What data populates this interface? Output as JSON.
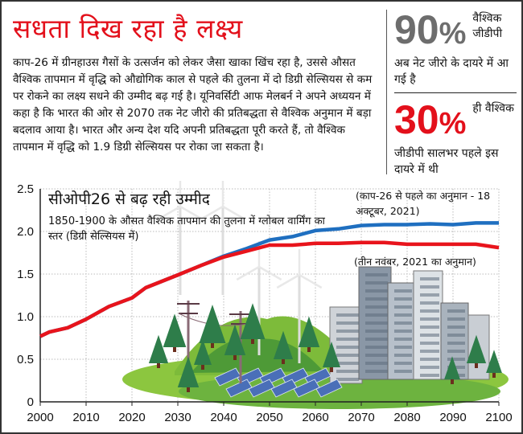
{
  "headline": "सधता दिख रहा है लक्ष्य",
  "body_text": "काप-26 में ग्रीनहाउस गैसों के उत्सर्जन को लेकर जैसा खाका खिंच रहा है, उससे औसत वैश्विक तापमान में वृद्धि को औद्योगिक काल से पहले की तुलना में दो डिग्री सेल्सियस से कम पर रोकने का लक्ष्य सधने की उम्मीद बढ़ गई है। यूनिवर्सिटी आफ मेलबर्न ने अपने अध्ययन में कहा है कि भारत की ओर से 2070 तक नेट जीरो की प्रतिबद्धता से वैश्विक अनुमान में बड़ा बदलाव आया है। भारत और अन्य देश यदि अपनी प्रतिबद्धता पूरी करते हैं, तो वैश्विक तापमान में वृद्धि को 1.9 डिग्री सेल्सियस पर रोका जा सकता है।",
  "stats": [
    {
      "value": "90",
      "unit": "%",
      "side": "वैश्विक जीडीपी",
      "desc": "अब नेट जीरो के दायरे में आ गई है",
      "color": "#6d6d6d"
    },
    {
      "value": "30",
      "unit": "%",
      "side": "ही वैश्विक",
      "desc": "जीडीपी सालभर पहले इस दायरे में थी",
      "color": "#e3101b"
    }
  ],
  "chart_data": {
    "type": "line",
    "title": "सीओपी26 से बढ़ रही उम्मीद",
    "subtitle": "1850-1900 के औसत वैश्विक तापमान की तुलना में ग्लोबल वार्मिंग का स्तर (डिग्री सेल्सियस में)",
    "xlim": [
      2000,
      2100
    ],
    "ylim": [
      0,
      2.5
    ],
    "x_ticks": [
      "2000",
      "2010",
      "2020",
      "2030",
      "2040",
      "2050",
      "2060",
      "2070",
      "2080",
      "2090",
      "2100"
    ],
    "y_ticks": [
      "0",
      "0.5",
      "1.0",
      "1.5",
      "2.0",
      "2.5"
    ],
    "grid": true,
    "x": [
      2000,
      2002,
      2006,
      2010,
      2015,
      2020,
      2023,
      2030,
      2035,
      2040,
      2045,
      2050,
      2055,
      2060,
      2065,
      2070,
      2075,
      2080,
      2085,
      2090,
      2095,
      2100
    ],
    "series": [
      {
        "name": "(काप-26 से पहले का अनुमान - 18 अक्टूबर, 2021)",
        "color": "#1f6fc0",
        "values": [
          0.77,
          0.82,
          0.87,
          0.97,
          1.12,
          1.22,
          1.34,
          1.49,
          1.6,
          1.71,
          1.8,
          1.9,
          1.94,
          2.01,
          2.03,
          2.07,
          2.08,
          2.08,
          2.09,
          2.08,
          2.1,
          2.1
        ]
      },
      {
        "name": "(तीन नवंबर, 2021 का अनुमान)",
        "color": "#e8141c",
        "values": [
          0.77,
          0.82,
          0.87,
          0.97,
          1.12,
          1.22,
          1.34,
          1.49,
          1.6,
          1.7,
          1.77,
          1.84,
          1.84,
          1.86,
          1.86,
          1.87,
          1.87,
          1.85,
          1.85,
          1.85,
          1.85,
          1.81
        ]
      }
    ]
  }
}
